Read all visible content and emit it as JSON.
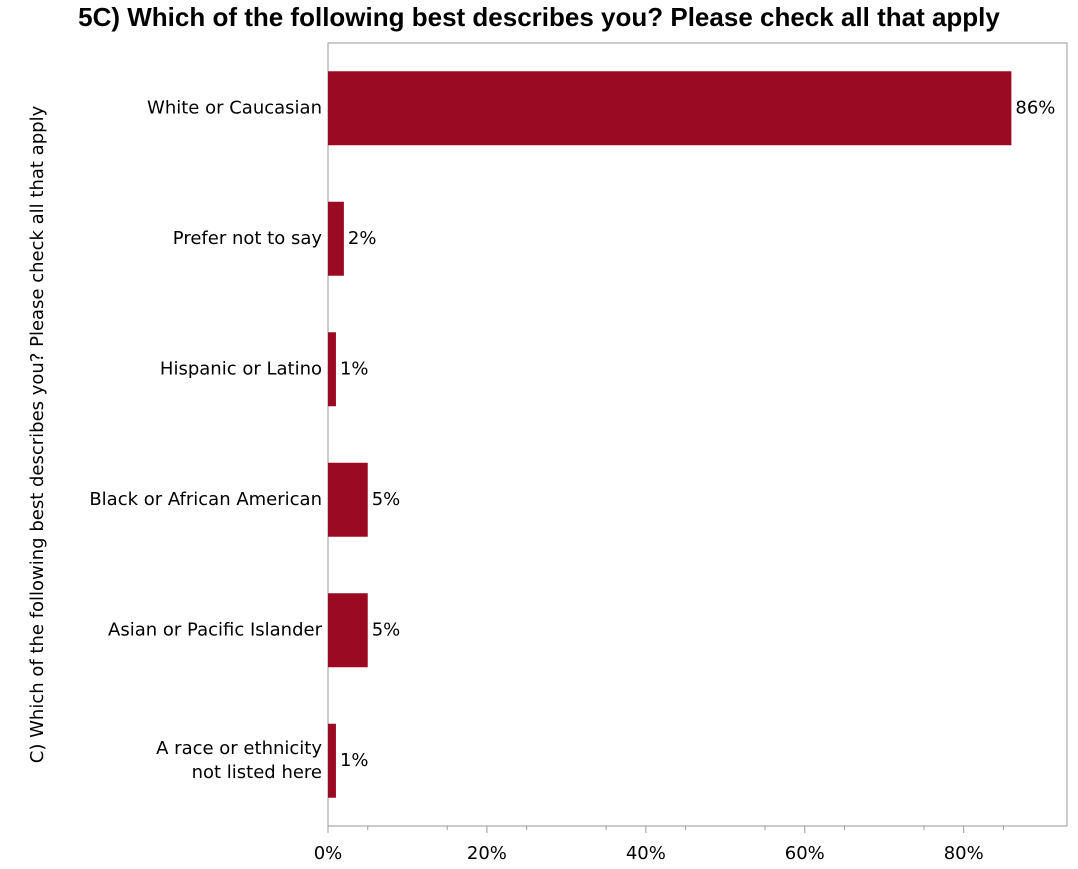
{
  "chart_data": {
    "type": "bar",
    "orientation": "horizontal",
    "title": "5C) Which of the following best describes you? Please check all that apply",
    "xlabel": "",
    "ylabel": "C) Which of the following best describes you? Please check all that apply",
    "categories": [
      [
        "White or Caucasian"
      ],
      [
        "Prefer not to say"
      ],
      [
        "Hispanic or Latino"
      ],
      [
        "Black or African American"
      ],
      [
        "Asian or Pacific Islander"
      ],
      [
        "A race or ethnicity",
        "not listed here"
      ]
    ],
    "values": [
      86,
      2,
      1,
      5,
      5,
      1
    ],
    "data_labels": [
      "86%",
      "2%",
      "1%",
      "5%",
      "5%",
      "1%"
    ],
    "xlim": [
      0,
      93
    ],
    "x_ticks": [
      0,
      20,
      40,
      60,
      80
    ],
    "x_tick_labels": [
      "0%",
      "20%",
      "40%",
      "60%",
      "80%"
    ],
    "bar_color": "#9b0a23",
    "grid": false
  }
}
